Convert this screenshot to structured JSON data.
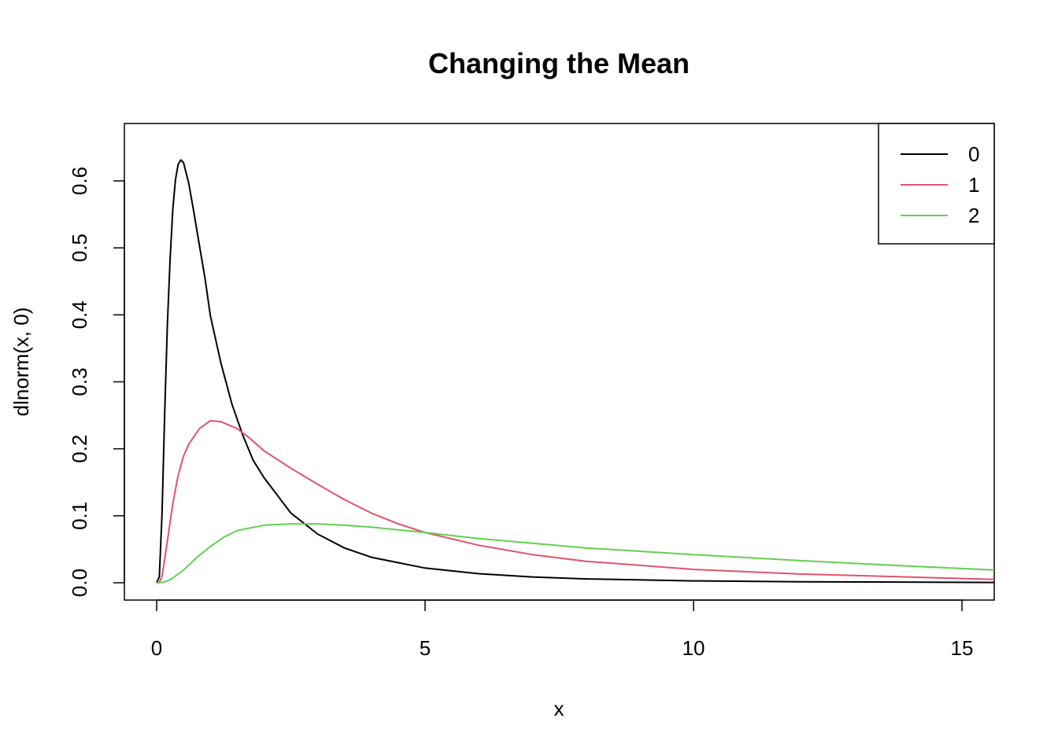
{
  "chart_data": {
    "type": "line",
    "title": "Changing the Mean",
    "xlabel": "x",
    "ylabel": "dlnorm(x, 0)",
    "xlim": [
      0,
      15.6
    ],
    "ylim": [
      0,
      0.66
    ],
    "x_ticks": [
      "0",
      "5",
      "10",
      "15"
    ],
    "y_ticks": [
      "0.0",
      "0.1",
      "0.2",
      "0.3",
      "0.4",
      "0.5",
      "0.6"
    ],
    "legend_position": "top-right",
    "series": [
      {
        "name": "0",
        "color": "#000000",
        "x": [
          0,
          0.05,
          0.1,
          0.15,
          0.2,
          0.25,
          0.3,
          0.35,
          0.4,
          0.45,
          0.5,
          0.6,
          0.7,
          0.8,
          0.9,
          1,
          1.2,
          1.4,
          1.6,
          1.8,
          2,
          2.5,
          3,
          3.5,
          4,
          5,
          6,
          7,
          8,
          10,
          12,
          15.6
        ],
        "y": [
          0,
          0.0089,
          0.1021,
          0.2527,
          0.3847,
          0.4832,
          0.5573,
          0.6019,
          0.6245,
          0.6312,
          0.6275,
          0.5956,
          0.5502,
          0.5017,
          0.4549,
          0.3989,
          0.3272,
          0.2672,
          0.2212,
          0.1823,
          0.1569,
          0.104,
          0.0727,
          0.0519,
          0.0381,
          0.0219,
          0.0135,
          0.0087,
          0.0058,
          0.0028,
          0.0015,
          0.0005
        ]
      },
      {
        "name": "1",
        "color": "#df536b",
        "x": [
          0,
          0.05,
          0.1,
          0.2,
          0.3,
          0.4,
          0.5,
          0.6,
          0.8,
          1,
          1.2,
          1.5,
          1.7,
          2,
          2.5,
          3,
          3.5,
          4,
          4.5,
          5,
          6,
          7,
          8,
          10,
          12,
          15.6
        ],
        "y": [
          0,
          0.0003,
          0.0093,
          0.062,
          0.1182,
          0.1604,
          0.189,
          0.207,
          0.2305,
          0.242,
          0.2405,
          0.23,
          0.218,
          0.197,
          0.171,
          0.147,
          0.124,
          0.104,
          0.088,
          0.075,
          0.056,
          0.042,
          0.032,
          0.02,
          0.013,
          0.005
        ]
      },
      {
        "name": "2",
        "color": "#61d04f",
        "x": [
          0,
          0.1,
          0.2,
          0.3,
          0.5,
          0.75,
          1,
          1.25,
          1.5,
          2,
          2.5,
          2.8,
          3,
          3.5,
          4,
          5,
          6,
          7,
          8,
          10,
          12,
          14,
          15.6
        ],
        "y": [
          0,
          0.0005,
          0.0025,
          0.007,
          0.019,
          0.038,
          0.054,
          0.068,
          0.078,
          0.086,
          0.088,
          0.088,
          0.088,
          0.086,
          0.083,
          0.075,
          0.066,
          0.059,
          0.052,
          0.042,
          0.033,
          0.025,
          0.019
        ]
      }
    ]
  }
}
